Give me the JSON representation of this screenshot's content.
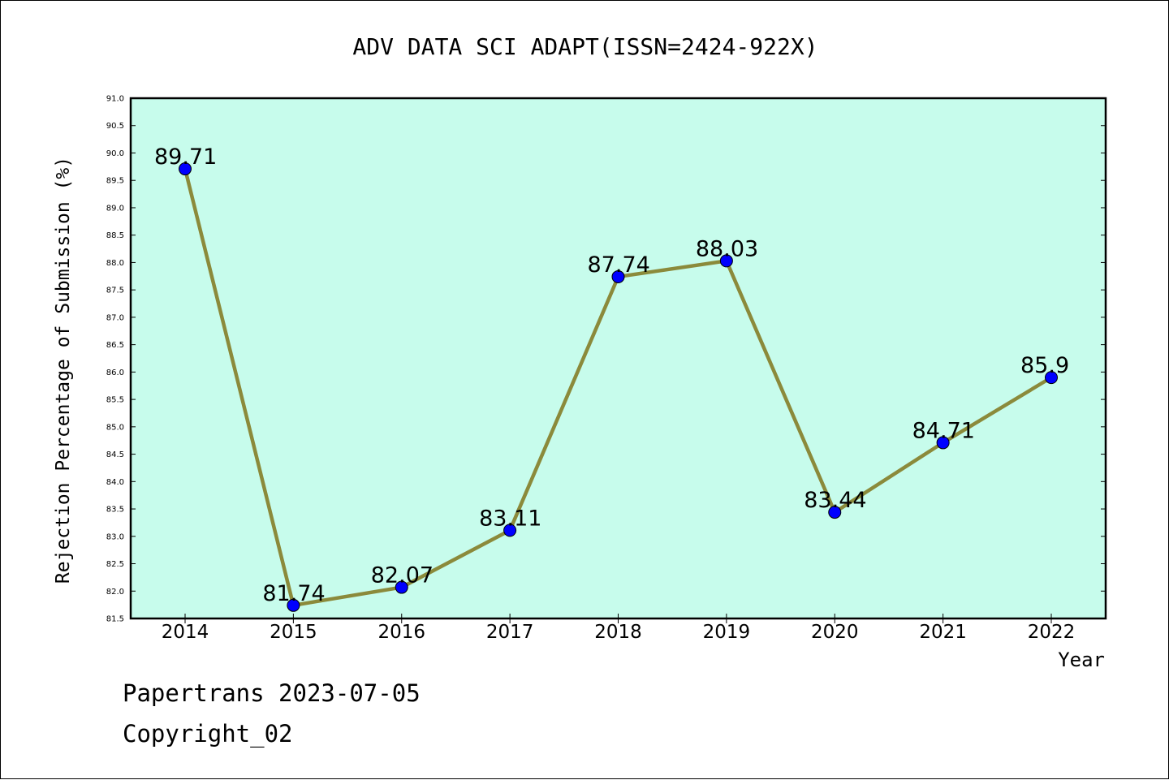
{
  "chart_data": {
    "type": "line",
    "title": "ADV DATA SCI ADAPT(ISSN=2424-922X)",
    "xlabel": "Year",
    "ylabel": "Rejection Percentage of Submission (%)",
    "categories": [
      "2014",
      "2015",
      "2016",
      "2017",
      "2018",
      "2019",
      "2020",
      "2021",
      "2022"
    ],
    "values": [
      89.71,
      81.74,
      82.07,
      83.11,
      87.74,
      88.03,
      83.44,
      84.71,
      85.9
    ],
    "data_labels": [
      "89.71",
      "81.74",
      "82.07",
      "83.11",
      "87.74",
      "88.03",
      "83.44",
      "84.71",
      "85.9"
    ],
    "ylim": [
      81.5,
      91.0
    ],
    "yticks": [
      "81.5",
      "82.0",
      "82.5",
      "83.0",
      "83.5",
      "84.0",
      "84.5",
      "85.0",
      "85.5",
      "86.0",
      "86.5",
      "87.0",
      "87.5",
      "88.0",
      "88.5",
      "89.0",
      "89.5",
      "90.0",
      "90.5",
      "91.0"
    ],
    "grid": false,
    "colors": {
      "plot_background": "#c7fcec",
      "line": "#8b8a3b",
      "marker": "#0000ff"
    }
  },
  "footer": {
    "line1": "Papertrans 2023-07-05",
    "line2": "Copyright_02"
  }
}
